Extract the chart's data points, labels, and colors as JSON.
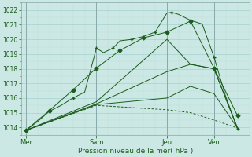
{
  "xlabel": "Pression niveau de la mer( hPa )",
  "ylim": [
    1013.5,
    1022.5
  ],
  "yticks": [
    1014,
    1015,
    1016,
    1017,
    1018,
    1019,
    1020,
    1021,
    1022
  ],
  "bg_color": "#cce8e4",
  "grid_color_major": "#99cccc",
  "grid_color_minor": "#bbdddd",
  "line_color": "#1a5c1a",
  "xtick_labels": [
    "Mer",
    "Sam",
    "Jeu",
    "Ven"
  ],
  "xtick_positions": [
    0,
    30,
    60,
    80
  ],
  "xlim": [
    -2,
    95
  ],
  "line1_x": [
    0,
    5,
    10,
    15,
    20,
    25,
    30,
    33,
    37,
    40,
    45,
    50,
    55,
    60,
    62,
    65,
    70,
    75,
    80,
    85,
    90
  ],
  "line1_y": [
    1013.8,
    1014.4,
    1015.1,
    1015.5,
    1016.0,
    1016.4,
    1019.4,
    1019.1,
    1019.4,
    1019.9,
    1020.0,
    1020.2,
    1020.5,
    1021.8,
    1021.85,
    1021.7,
    1021.3,
    1021.05,
    1018.8,
    1016.1,
    1013.9
  ],
  "line2_x": [
    0,
    10,
    20,
    30,
    40,
    50,
    60,
    70,
    80,
    90
  ],
  "line2_y": [
    1013.8,
    1015.15,
    1016.55,
    1018.05,
    1019.25,
    1020.1,
    1020.5,
    1021.25,
    1018.05,
    1014.8
  ],
  "line3_x": [
    0,
    30,
    60,
    70,
    80,
    90
  ],
  "line3_y": [
    1013.8,
    1015.75,
    1020.0,
    1018.3,
    1018.0,
    1013.95
  ],
  "line4_x": [
    0,
    30,
    60,
    70,
    80,
    90
  ],
  "line4_y": [
    1013.8,
    1015.6,
    1017.8,
    1018.3,
    1018.0,
    1013.95
  ],
  "line5_x": [
    0,
    30,
    60,
    70,
    80,
    90
  ],
  "line5_y": [
    1013.8,
    1015.55,
    1016.0,
    1016.8,
    1016.3,
    1013.95
  ],
  "line6_x": [
    0,
    30,
    60,
    70,
    80,
    90
  ],
  "line6_y": [
    1013.8,
    1015.5,
    1015.2,
    1015.0,
    1014.5,
    1013.95
  ]
}
